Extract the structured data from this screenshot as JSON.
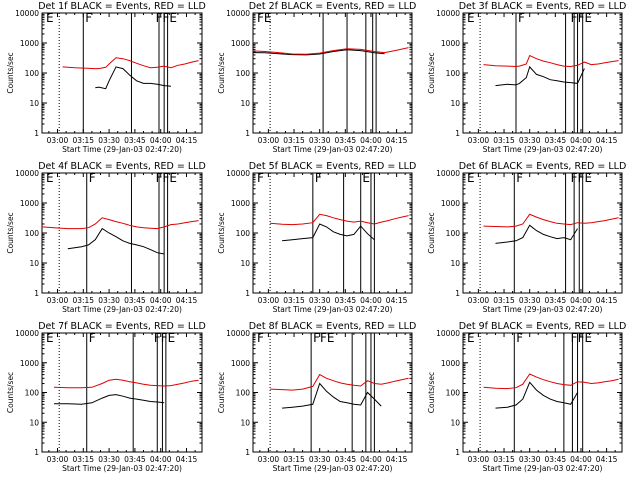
{
  "figure": {
    "xlabel": "Start Time (29-Jan-03 02:47:20)",
    "ylabel": "Counts/sec",
    "title_suffix": " BLACK = Events, RED = LLD",
    "xtick_labels": [
      "03:00",
      "03:15",
      "03:30",
      "03:45",
      "04:00",
      "04:15"
    ],
    "ytick_labels": [
      "1",
      "10",
      "100",
      "1000",
      "10000"
    ],
    "colors": {
      "events": "#000000",
      "lld": "#e00000"
    }
  },
  "chart_data": [
    {
      "type": "line",
      "panel": "Det 1f",
      "title": "Det 1f BLACK = Events, RED = LLD",
      "xlabel": "Start Time (29-Jan-03 02:47:20)",
      "ylabel": "Counts/sec",
      "xlim": [
        "02:51",
        "04:24"
      ],
      "ylim": [
        1,
        10000
      ],
      "yscale": "log",
      "x": [
        "03:03",
        "03:10",
        "03:17",
        "03:22",
        "03:24",
        "03:28",
        "03:30",
        "03:34",
        "03:38",
        "03:42",
        "03:46",
        "03:50",
        "03:54",
        "03:58",
        "04:02",
        "04:06",
        "04:10",
        "04:14",
        "04:18",
        "04:22"
      ],
      "series": [
        {
          "name": "Events",
          "values": [
            null,
            null,
            null,
            32,
            34,
            30,
            55,
            160,
            140,
            85,
            55,
            45,
            45,
            42,
            38,
            36,
            null,
            null,
            null,
            null
          ]
        },
        {
          "name": "LLD",
          "values": [
            160,
            150,
            145,
            140,
            140,
            155,
            200,
            320,
            300,
            260,
            210,
            175,
            150,
            155,
            170,
            150,
            180,
            200,
            230,
            260
          ]
        }
      ],
      "vlines": [
        "03:15",
        "03:43",
        "03:59",
        "04:02",
        "04:04"
      ],
      "dotted_vlines": [
        "03:01"
      ],
      "flags": [
        "E",
        "F",
        "FFE"
      ]
    },
    {
      "type": "line",
      "panel": "Det 2f",
      "title": "Det 2f BLACK = Events, RED = LLD",
      "xlabel": "Start Time (29-Jan-03 02:47:20)",
      "ylabel": "Counts/sec",
      "xlim": [
        "02:51",
        "04:24"
      ],
      "ylim": [
        1,
        10000
      ],
      "yscale": "log",
      "x": [
        "02:51",
        "02:58",
        "03:06",
        "03:14",
        "03:22",
        "03:30",
        "03:38",
        "03:46",
        "03:54",
        "04:02",
        "04:08",
        "04:14",
        "04:22"
      ],
      "series": [
        {
          "name": "Events",
          "values": [
            480,
            470,
            440,
            410,
            400,
            430,
            520,
            600,
            560,
            470,
            440,
            null,
            null
          ]
        },
        {
          "name": "LLD",
          "values": [
            540,
            520,
            480,
            430,
            420,
            460,
            560,
            640,
            610,
            520,
            480,
            560,
            700
          ]
        }
      ],
      "vlines": [
        "03:32",
        "03:46",
        "03:57",
        "04:01",
        "04:03"
      ],
      "dotted_vlines": [
        "03:01"
      ],
      "flags": [
        "FE"
      ]
    },
    {
      "type": "line",
      "panel": "Det 3f",
      "title": "Det 3f BLACK = Events, RED = LLD",
      "xlabel": "Start Time (29-Jan-03 02:47:20)",
      "ylabel": "Counts/sec",
      "xlim": [
        "02:51",
        "04:24"
      ],
      "ylim": [
        1,
        10000
      ],
      "yscale": "log",
      "x": [
        "03:03",
        "03:10",
        "03:17",
        "03:22",
        "03:24",
        "03:28",
        "03:30",
        "03:34",
        "03:38",
        "03:42",
        "03:46",
        "03:50",
        "03:54",
        "03:58",
        "04:02",
        "04:06",
        "04:10",
        "04:14",
        "04:18",
        "04:22"
      ],
      "series": [
        {
          "name": "Events",
          "values": [
            null,
            38,
            42,
            40,
            45,
            70,
            160,
            90,
            75,
            60,
            55,
            50,
            48,
            45,
            140,
            null,
            null,
            null,
            null,
            null
          ]
        },
        {
          "name": "LLD",
          "values": [
            190,
            175,
            170,
            165,
            170,
            200,
            380,
            300,
            250,
            220,
            190,
            170,
            165,
            180,
            230,
            190,
            200,
            220,
            240,
            260
          ]
        }
      ],
      "vlines": [
        "03:22",
        "03:51",
        "03:56",
        "03:58",
        "04:01"
      ],
      "dotted_vlines": [
        "03:01"
      ],
      "flags": [
        "E",
        "F",
        "FFE"
      ]
    },
    {
      "type": "line",
      "panel": "Det 4f",
      "title": "Det 4f BLACK = Events, RED = LLD",
      "xlabel": "Start Time (29-Jan-03 02:47:20)",
      "ylabel": "Counts/sec",
      "xlim": [
        "02:51",
        "04:24"
      ],
      "ylim": [
        1,
        10000
      ],
      "yscale": "log",
      "x": [
        "02:51",
        "02:58",
        "03:06",
        "03:14",
        "03:18",
        "03:22",
        "03:26",
        "03:30",
        "03:34",
        "03:38",
        "03:42",
        "03:46",
        "03:50",
        "03:54",
        "03:58",
        "04:02",
        "04:06",
        "04:10",
        "04:14",
        "04:18",
        "04:22"
      ],
      "series": [
        {
          "name": "Events",
          "values": [
            null,
            null,
            30,
            35,
            40,
            60,
            140,
            100,
            75,
            55,
            45,
            40,
            35,
            28,
            22,
            20,
            null,
            null,
            null,
            null,
            null
          ]
        },
        {
          "name": "LLD",
          "values": [
            160,
            150,
            140,
            140,
            150,
            200,
            320,
            280,
            240,
            210,
            180,
            160,
            150,
            145,
            140,
            160,
            190,
            200,
            220,
            240,
            260
          ]
        }
      ],
      "vlines": [
        "03:17",
        "03:43",
        "03:59",
        "04:02",
        "04:04"
      ],
      "dotted_vlines": [
        "03:01"
      ],
      "flags": [
        "E",
        "F",
        "FFE"
      ]
    },
    {
      "type": "line",
      "panel": "Det 5f",
      "title": "Det 5f BLACK = Events, RED = LLD",
      "xlabel": "Start Time (29-Jan-03 02:47:20)",
      "ylabel": "Counts/sec",
      "xlim": [
        "02:51",
        "04:24"
      ],
      "ylim": [
        1,
        10000
      ],
      "yscale": "log",
      "x": [
        "03:01",
        "03:08",
        "03:14",
        "03:20",
        "03:26",
        "03:30",
        "03:34",
        "03:38",
        "03:42",
        "03:46",
        "03:50",
        "03:54",
        "03:58",
        "04:02",
        "04:06",
        "04:10",
        "04:14",
        "04:18",
        "04:22"
      ],
      "series": [
        {
          "name": "Events",
          "values": [
            null,
            55,
            60,
            65,
            70,
            200,
            160,
            110,
            90,
            80,
            90,
            170,
            95,
            60,
            null,
            null,
            null,
            null,
            null
          ]
        },
        {
          "name": "LLD",
          "values": [
            210,
            195,
            190,
            200,
            220,
            420,
            380,
            320,
            280,
            250,
            230,
            250,
            220,
            200,
            230,
            260,
            300,
            340,
            380
          ]
        }
      ],
      "vlines": [
        "03:26",
        "03:44",
        "03:54",
        "04:00",
        "04:02"
      ],
      "dotted_vlines": [
        "03:01"
      ],
      "flags": [
        "F",
        "F",
        "E"
      ]
    },
    {
      "type": "line",
      "panel": "Det 6f",
      "title": "Det 6f BLACK = Events, RED = LLD",
      "xlabel": "Start Time (29-Jan-03 02:47:20)",
      "ylabel": "Counts/sec",
      "xlim": [
        "02:51",
        "04:24"
      ],
      "ylim": [
        1,
        10000
      ],
      "yscale": "log",
      "x": [
        "03:03",
        "03:10",
        "03:17",
        "03:22",
        "03:26",
        "03:30",
        "03:34",
        "03:38",
        "03:42",
        "03:46",
        "03:50",
        "03:54",
        "03:58",
        "04:02",
        "04:06",
        "04:10",
        "04:14",
        "04:18",
        "04:22"
      ],
      "series": [
        {
          "name": "Events",
          "values": [
            null,
            45,
            50,
            55,
            70,
            180,
            120,
            90,
            75,
            65,
            70,
            60,
            140,
            null,
            null,
            null,
            null,
            null,
            null
          ]
        },
        {
          "name": "LLD",
          "values": [
            170,
            165,
            160,
            170,
            200,
            420,
            340,
            280,
            240,
            210,
            200,
            190,
            220,
            210,
            220,
            240,
            260,
            290,
            320
          ]
        }
      ],
      "vlines": [
        "03:21",
        "03:51",
        "03:56",
        "03:59",
        "04:01"
      ],
      "dotted_vlines": [
        "03:01"
      ],
      "flags": [
        "E",
        "F",
        "FFE"
      ]
    },
    {
      "type": "line",
      "panel": "Det 7f",
      "title": "Det 7f BLACK = Events, RED = LLD",
      "xlabel": "Start Time (29-Jan-03 02:47:20)",
      "ylabel": "Counts/sec",
      "xlim": [
        "02:51",
        "04:24"
      ],
      "ylim": [
        1,
        10000
      ],
      "yscale": "log",
      "x": [
        "02:51",
        "02:58",
        "03:06",
        "03:14",
        "03:20",
        "03:26",
        "03:30",
        "03:34",
        "03:38",
        "03:42",
        "03:46",
        "03:50",
        "03:54",
        "03:58",
        "04:02",
        "04:06",
        "04:10",
        "04:14",
        "04:18",
        "04:22"
      ],
      "series": [
        {
          "name": "Events",
          "values": [
            null,
            42,
            42,
            40,
            45,
            65,
            80,
            85,
            75,
            65,
            60,
            55,
            50,
            48,
            45,
            null,
            null,
            null,
            null,
            null
          ]
        },
        {
          "name": "LLD",
          "values": [
            null,
            150,
            145,
            145,
            150,
            200,
            260,
            280,
            260,
            230,
            210,
            190,
            175,
            170,
            165,
            170,
            190,
            210,
            240,
            260
          ]
        }
      ],
      "vlines": [
        "03:17",
        "03:44",
        "03:58",
        "04:01",
        "04:03"
      ],
      "dotted_vlines": [
        "03:01"
      ],
      "flags": [
        "E",
        "F",
        "FFE"
      ]
    },
    {
      "type": "line",
      "panel": "Det 8f",
      "title": "Det 8f BLACK = Events, RED = LLD",
      "xlabel": "Start Time (29-Jan-03 02:47:20)",
      "ylabel": "Counts/sec",
      "xlim": [
        "02:51",
        "04:24"
      ],
      "ylim": [
        1,
        10000
      ],
      "yscale": "log",
      "x": [
        "03:01",
        "03:08",
        "03:14",
        "03:20",
        "03:26",
        "03:30",
        "03:34",
        "03:38",
        "03:42",
        "03:46",
        "03:50",
        "03:54",
        "03:58",
        "04:02",
        "04:06",
        "04:10",
        "04:14",
        "04:18",
        "04:22"
      ],
      "series": [
        {
          "name": "Events",
          "values": [
            null,
            30,
            32,
            35,
            40,
            200,
            110,
            70,
            50,
            45,
            40,
            38,
            100,
            60,
            35,
            null,
            null,
            null,
            null
          ]
        },
        {
          "name": "LLD",
          "values": [
            130,
            125,
            120,
            130,
            160,
            400,
            300,
            250,
            210,
            190,
            175,
            165,
            250,
            200,
            190,
            210,
            240,
            270,
            300
          ]
        }
      ],
      "vlines": [
        "03:25",
        "03:49",
        "03:57",
        "04:00",
        "04:02"
      ],
      "dotted_vlines": [
        "03:01"
      ],
      "flags": [
        "F",
        "FFE"
      ]
    },
    {
      "type": "line",
      "panel": "Det 9f",
      "title": "Det 9f BLACK = Events, RED = LLD",
      "xlabel": "Start Time (29-Jan-03 02:47:20)",
      "ylabel": "Counts/sec",
      "xlim": [
        "02:51",
        "04:24"
      ],
      "ylim": [
        1,
        10000
      ],
      "yscale": "log",
      "x": [
        "03:03",
        "03:10",
        "03:17",
        "03:22",
        "03:26",
        "03:30",
        "03:34",
        "03:38",
        "03:42",
        "03:46",
        "03:50",
        "03:54",
        "03:58",
        "04:02",
        "04:06",
        "04:10",
        "04:14",
        "04:18",
        "04:22"
      ],
      "series": [
        {
          "name": "Events",
          "values": [
            null,
            30,
            32,
            38,
            60,
            220,
            120,
            80,
            60,
            50,
            45,
            40,
            100,
            null,
            null,
            null,
            null,
            null,
            null
          ]
        },
        {
          "name": "LLD",
          "values": [
            150,
            140,
            135,
            145,
            190,
            420,
            330,
            270,
            230,
            200,
            185,
            175,
            230,
            220,
            200,
            210,
            230,
            250,
            280
          ]
        }
      ],
      "vlines": [
        "03:21",
        "03:50",
        "03:55",
        "03:58",
        "04:01"
      ],
      "dotted_vlines": [
        "03:01"
      ],
      "flags": [
        "E",
        "F",
        "FFE"
      ]
    }
  ]
}
